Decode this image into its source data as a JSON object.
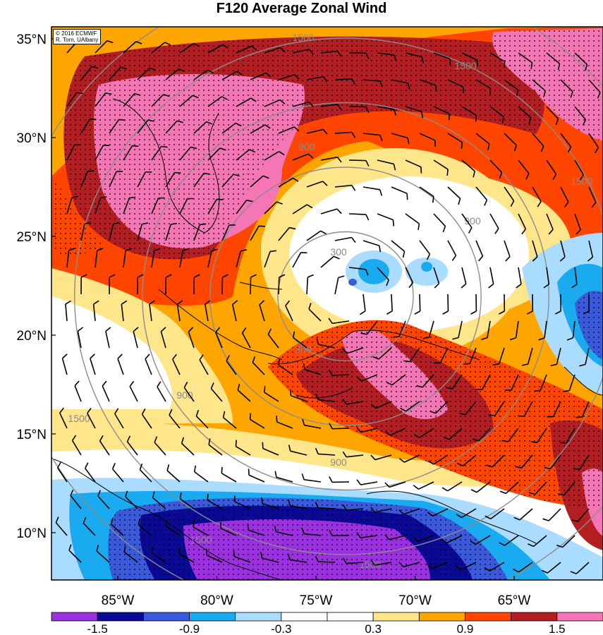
{
  "title": "F120 Average Zonal Wind",
  "credit": {
    "line1": "© 2016 ECMWF",
    "line2": "R. Torn, UAlbany"
  },
  "latitude_ticks": [
    {
      "label": "35°N",
      "lat": 35
    },
    {
      "label": "30°N",
      "lat": 30
    },
    {
      "label": "25°N",
      "lat": 25
    },
    {
      "label": "20°N",
      "lat": 20
    },
    {
      "label": "15°N",
      "lat": 15
    },
    {
      "label": "10°N",
      "lat": 10
    }
  ],
  "longitude_ticks": [
    {
      "label": "85°W",
      "lon": -85
    },
    {
      "label": "80°W",
      "lon": -80
    },
    {
      "label": "75°W",
      "lon": -75
    },
    {
      "label": "70°W",
      "lon": -70
    },
    {
      "label": "65°W",
      "lon": -65
    }
  ],
  "range_rings": {
    "labels": [
      "300",
      "900",
      "1500"
    ],
    "km": [
      300,
      600,
      900,
      1200,
      1500
    ]
  },
  "colorbar": {
    "colors": [
      "#9b30e0",
      "#0a0a96",
      "#3a5adb",
      "#1aaaf0",
      "#aadcff",
      "#ffffff",
      "#ffffff",
      "#ffe68a",
      "#ffa500",
      "#ff4500",
      "#b21e22",
      "#f576b5"
    ],
    "labels": [
      "-1.5",
      "-0.9",
      "-0.3",
      "0.3",
      "0.9",
      "1.5"
    ]
  },
  "colors": {
    "stipple": "#000000",
    "ring": "#8c8c8c",
    "coast": "#000000"
  }
}
